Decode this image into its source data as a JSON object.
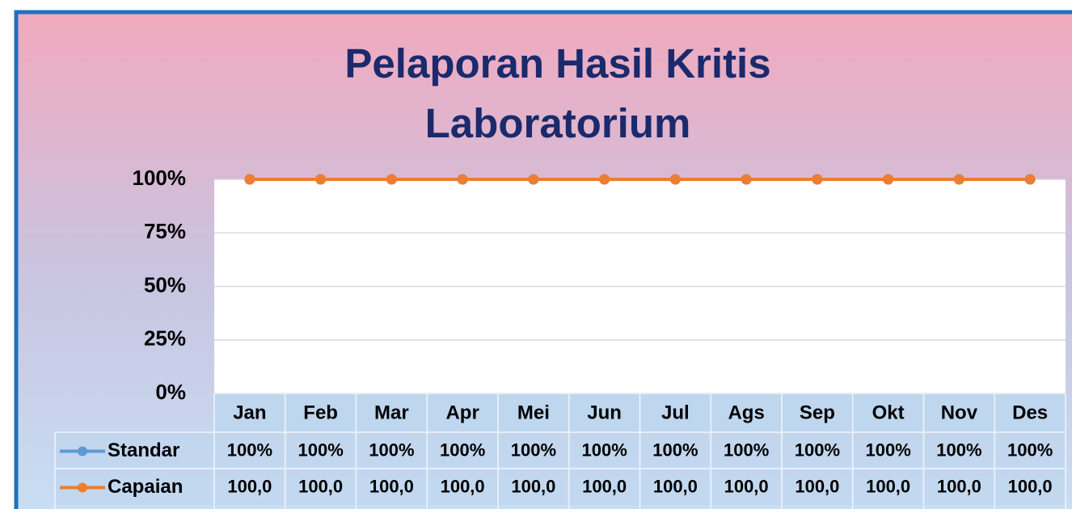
{
  "chart_data": {
    "type": "line",
    "title": "Pelaporan Hasil Kritis Laboratorium",
    "categories": [
      "Jan",
      "Feb",
      "Mar",
      "Apr",
      "Mei",
      "Jun",
      "Jul",
      "Ags",
      "Sep",
      "Okt",
      "Nov",
      "Des"
    ],
    "series": [
      {
        "name": "Standar",
        "color": "#5b9bd5",
        "values": [
          100,
          100,
          100,
          100,
          100,
          100,
          100,
          100,
          100,
          100,
          100,
          100
        ],
        "value_labels": [
          "100%",
          "100%",
          "100%",
          "100%",
          "100%",
          "100%",
          "100%",
          "100%",
          "100%",
          "100%",
          "100%",
          "100%"
        ]
      },
      {
        "name": "Capaian",
        "color": "#ed7d31",
        "values": [
          100,
          100,
          100,
          100,
          100,
          100,
          100,
          100,
          100,
          100,
          100,
          100
        ],
        "value_labels": [
          "100,0",
          "100,0",
          "100,0",
          "100,0",
          "100,0",
          "100,0",
          "100,0",
          "100,0",
          "100,0",
          "100,0",
          "100,0",
          "100,0"
        ]
      }
    ],
    "ylim": [
      0,
      100
    ],
    "yticks": [
      {
        "value": 0,
        "label": "0%"
      },
      {
        "value": 25,
        "label": "25%"
      },
      {
        "value": 50,
        "label": "50%"
      },
      {
        "value": 75,
        "label": "75%"
      },
      {
        "value": 100,
        "label": "100%"
      }
    ],
    "grid": true
  }
}
